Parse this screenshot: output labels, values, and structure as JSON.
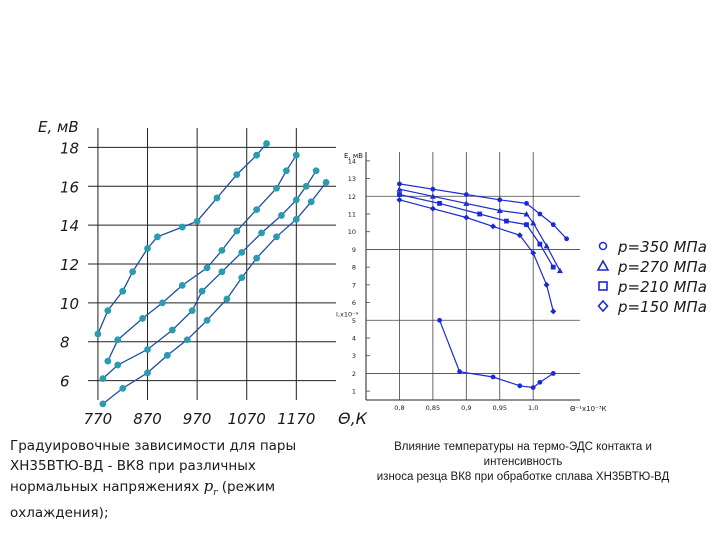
{
  "left_caption": {
    "before_symbol": "Градуировочные зависимости для пары ХН35ВТЮ-ВД - ВК8 при различных нормальных напряжениях",
    "symbol": "p",
    "symbol_sub": "r",
    "after_symbol": "(режим охлаждения);"
  },
  "right_caption": {
    "line1": "Влияние температуры на термо-ЭДС контакта и",
    "line2": "интенсивность",
    "line3": "износа резца ВК8 при обработке сплава ХН35ВТЮ-ВД"
  },
  "chart_data": [
    {
      "type": "scatter",
      "title": "",
      "ylabel": "Е, мВ",
      "xlabel": "Θ,К",
      "yticks": [
        "6",
        "8",
        "10",
        "12",
        "14",
        "16",
        "18"
      ],
      "xticks": [
        "770",
        "870",
        "970",
        "1070",
        "1170"
      ],
      "ylim": [
        5,
        19
      ],
      "xlim": [
        750,
        1250
      ],
      "grid": true,
      "color": "#2a9bb0",
      "series": [
        {
          "points": [
            [
              770,
              8.4
            ],
            [
              790,
              9.6
            ],
            [
              820,
              10.6
            ],
            [
              840,
              11.6
            ],
            [
              870,
              12.8
            ],
            [
              890,
              13.4
            ],
            [
              940,
              13.9
            ],
            [
              970,
              14.2
            ],
            [
              1010,
              15.4
            ],
            [
              1050,
              16.6
            ],
            [
              1090,
              17.6
            ],
            [
              1110,
              18.2
            ]
          ]
        },
        {
          "points": [
            [
              790,
              7.0
            ],
            [
              810,
              8.1
            ],
            [
              860,
              9.2
            ],
            [
              900,
              10.0
            ],
            [
              940,
              10.9
            ],
            [
              990,
              11.8
            ],
            [
              1020,
              12.7
            ],
            [
              1050,
              13.7
            ],
            [
              1090,
              14.8
            ],
            [
              1130,
              15.9
            ],
            [
              1150,
              16.8
            ],
            [
              1170,
              17.6
            ]
          ]
        },
        {
          "points": [
            [
              780,
              6.1
            ],
            [
              810,
              6.8
            ],
            [
              870,
              7.6
            ],
            [
              920,
              8.6
            ],
            [
              960,
              9.6
            ],
            [
              980,
              10.6
            ],
            [
              1020,
              11.6
            ],
            [
              1060,
              12.6
            ],
            [
              1100,
              13.6
            ],
            [
              1140,
              14.5
            ],
            [
              1170,
              15.3
            ],
            [
              1190,
              16.0
            ],
            [
              1210,
              16.8
            ]
          ]
        },
        {
          "points": [
            [
              780,
              4.8
            ],
            [
              820,
              5.6
            ],
            [
              870,
              6.4
            ],
            [
              910,
              7.3
            ],
            [
              950,
              8.1
            ],
            [
              990,
              9.1
            ],
            [
              1030,
              10.2
            ],
            [
              1060,
              11.3
            ],
            [
              1090,
              12.3
            ],
            [
              1130,
              13.4
            ],
            [
              1170,
              14.3
            ],
            [
              1200,
              15.2
            ],
            [
              1230,
              16.2
            ]
          ]
        }
      ]
    },
    {
      "type": "line",
      "title": "",
      "ylabel": "Е, мВ",
      "xlabel": "Θ⁻¹x10⁻³К",
      "xticks": [
        "0,8",
        "0,85",
        "0,9",
        "0,95",
        "1,0"
      ],
      "yticks": [
        "1",
        "2",
        "3",
        "4",
        "5",
        "6",
        "7",
        "8",
        "9",
        "10",
        "11",
        "12",
        "13",
        "14"
      ],
      "y_extra_label": "I,x10⁻⁹",
      "xlim": [
        0.75,
        1.07
      ],
      "ylim": [
        0.5,
        14.5
      ],
      "grid": true,
      "color": "#1a2ad6",
      "legend_position": "right",
      "legend": [
        {
          "marker": "circle",
          "label": "p=350 МПа"
        },
        {
          "marker": "triangle",
          "label": "p=270 МПа"
        },
        {
          "marker": "square",
          "label": "p=210 МПа"
        },
        {
          "marker": "diamond",
          "label": "p=150 МПа"
        }
      ],
      "series": [
        {
          "marker": "circle",
          "points": [
            [
              0.8,
              12.7
            ],
            [
              0.85,
              12.4
            ],
            [
              0.9,
              12.1
            ],
            [
              0.95,
              11.8
            ],
            [
              0.99,
              11.6
            ],
            [
              1.01,
              11.0
            ],
            [
              1.03,
              10.4
            ],
            [
              1.05,
              9.6
            ]
          ]
        },
        {
          "marker": "triangle",
          "points": [
            [
              0.8,
              12.4
            ],
            [
              0.85,
              12.0
            ],
            [
              0.9,
              11.6
            ],
            [
              0.95,
              11.2
            ],
            [
              0.99,
              11.0
            ],
            [
              1.0,
              10.5
            ],
            [
              1.02,
              9.2
            ],
            [
              1.04,
              7.8
            ]
          ]
        },
        {
          "marker": "square",
          "points": [
            [
              0.8,
              12.1
            ],
            [
              0.86,
              11.6
            ],
            [
              0.92,
              11.0
            ],
            [
              0.96,
              10.6
            ],
            [
              0.99,
              10.4
            ],
            [
              1.01,
              9.3
            ],
            [
              1.03,
              8.0
            ]
          ]
        },
        {
          "marker": "diamond",
          "points": [
            [
              0.8,
              11.8
            ],
            [
              0.85,
              11.3
            ],
            [
              0.9,
              10.8
            ],
            [
              0.94,
              10.3
            ],
            [
              0.98,
              9.8
            ],
            [
              1.0,
              8.8
            ],
            [
              1.02,
              7.0
            ],
            [
              1.03,
              5.5
            ]
          ]
        },
        {
          "marker": "dot",
          "points": [
            [
              0.86,
              5.0
            ],
            [
              0.89,
              2.1
            ],
            [
              0.94,
              1.8
            ],
            [
              0.98,
              1.3
            ],
            [
              1.0,
              1.2
            ],
            [
              1.01,
              1.5
            ],
            [
              1.03,
              2.0
            ]
          ]
        }
      ]
    }
  ]
}
